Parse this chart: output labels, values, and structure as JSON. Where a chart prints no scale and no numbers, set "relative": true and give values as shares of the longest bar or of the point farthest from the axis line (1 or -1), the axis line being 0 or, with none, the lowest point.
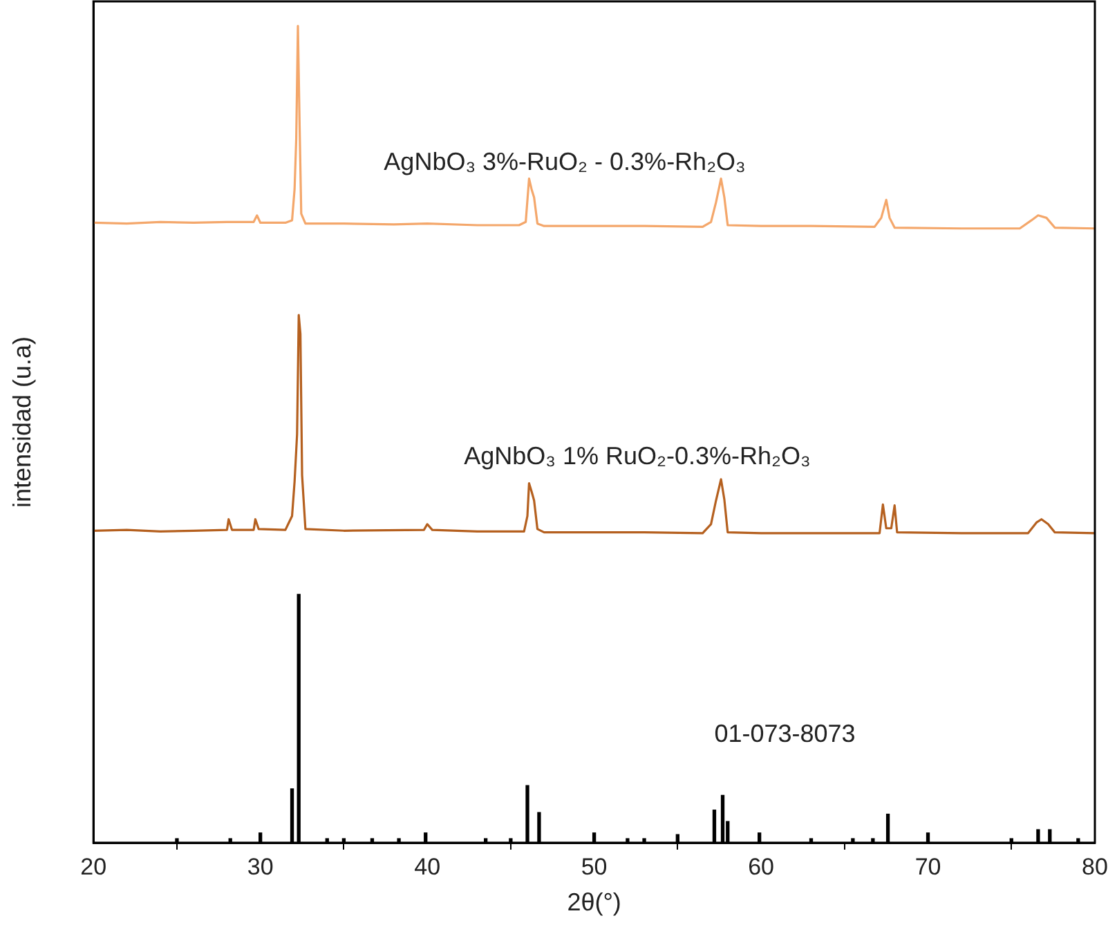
{
  "chart_data": {
    "type": "line",
    "relative": true,
    "xlabel": "2θ(°)",
    "ylabel": "intensidad (u.a)",
    "xlim": [
      20,
      80
    ],
    "xticks": [
      20,
      30,
      40,
      50,
      60,
      70,
      80
    ],
    "marker": "none",
    "series": [
      {
        "name": "AgNbO₃ 3%-RuO₂ - 0.3%-Rh₂O₃",
        "color": "#f4a76b",
        "x": [
          20,
          22,
          24,
          26,
          28,
          29.6,
          29.8,
          30,
          31.5,
          31.9,
          32.05,
          32.15,
          32.25,
          32.35,
          32.45,
          32.7,
          35,
          38,
          40,
          43,
          45.5,
          45.9,
          46.1,
          46.25,
          46.4,
          46.6,
          47,
          50,
          53,
          56.5,
          57.0,
          57.3,
          57.6,
          57.8,
          58.0,
          60,
          63,
          66.8,
          67.2,
          67.5,
          67.7,
          68,
          72,
          75.5,
          76.2,
          76.6,
          77.1,
          77.6,
          80
        ],
        "values": [
          0.759,
          0.758,
          0.76,
          0.759,
          0.76,
          0.76,
          0.768,
          0.759,
          0.759,
          0.762,
          0.8,
          0.862,
          1.0,
          0.88,
          0.77,
          0.758,
          0.758,
          0.757,
          0.758,
          0.756,
          0.756,
          0.76,
          0.813,
          0.8,
          0.79,
          0.758,
          0.755,
          0.755,
          0.755,
          0.754,
          0.76,
          0.784,
          0.813,
          0.79,
          0.756,
          0.755,
          0.755,
          0.754,
          0.765,
          0.787,
          0.765,
          0.753,
          0.752,
          0.752,
          0.762,
          0.768,
          0.765,
          0.753,
          0.752
        ]
      },
      {
        "name": "AgNbO₃ 1% RuO₂-0.3%-Rh₂O₃",
        "color": "#b5601f",
        "x": [
          20,
          22,
          24,
          26,
          28,
          28.1,
          28.3,
          29.6,
          29.7,
          29.9,
          31.5,
          31.9,
          32.05,
          32.2,
          32.3,
          32.4,
          32.5,
          32.7,
          35,
          39.8,
          40,
          40.3,
          43,
          45.8,
          46.0,
          46.1,
          46.25,
          46.4,
          46.6,
          47,
          50,
          53,
          56.5,
          57.0,
          57.3,
          57.6,
          57.8,
          58.0,
          60,
          63,
          67.1,
          67.3,
          67.5,
          67.8,
          68.0,
          68.15,
          72,
          76.0,
          76.5,
          76.8,
          77.2,
          77.6,
          80
        ],
        "values": [
          0.382,
          0.383,
          0.381,
          0.382,
          0.383,
          0.396,
          0.383,
          0.383,
          0.396,
          0.384,
          0.383,
          0.4,
          0.442,
          0.5,
          0.646,
          0.623,
          0.45,
          0.384,
          0.382,
          0.383,
          0.39,
          0.383,
          0.381,
          0.381,
          0.4,
          0.44,
          0.43,
          0.419,
          0.384,
          0.38,
          0.38,
          0.38,
          0.379,
          0.39,
          0.419,
          0.445,
          0.42,
          0.38,
          0.379,
          0.379,
          0.379,
          0.414,
          0.385,
          0.385,
          0.413,
          0.38,
          0.379,
          0.379,
          0.392,
          0.396,
          0.39,
          0.38,
          0.379
        ]
      },
      {
        "name": "01-073-8073",
        "type": "bar",
        "color": "#000000",
        "x": [
          25,
          28.2,
          30,
          31.9,
          32.3,
          34,
          35,
          36.7,
          38.3,
          39.9,
          43.5,
          45,
          46.0,
          46.7,
          50,
          52,
          53,
          55,
          57.2,
          57.7,
          58.0,
          59.9,
          63,
          65.5,
          66.7,
          67.6,
          70,
          75,
          76.6,
          77.3,
          79
        ],
        "values": [
          0.005,
          0.005,
          0.012,
          0.066,
          0.304,
          0.005,
          0.005,
          0.005,
          0.005,
          0.012,
          0.005,
          0.005,
          0.07,
          0.037,
          0.012,
          0.005,
          0.005,
          0.01,
          0.04,
          0.058,
          0.026,
          0.012,
          0.005,
          0.005,
          0.005,
          0.035,
          0.012,
          0.005,
          0.016,
          0.016,
          0.005
        ]
      }
    ]
  }
}
